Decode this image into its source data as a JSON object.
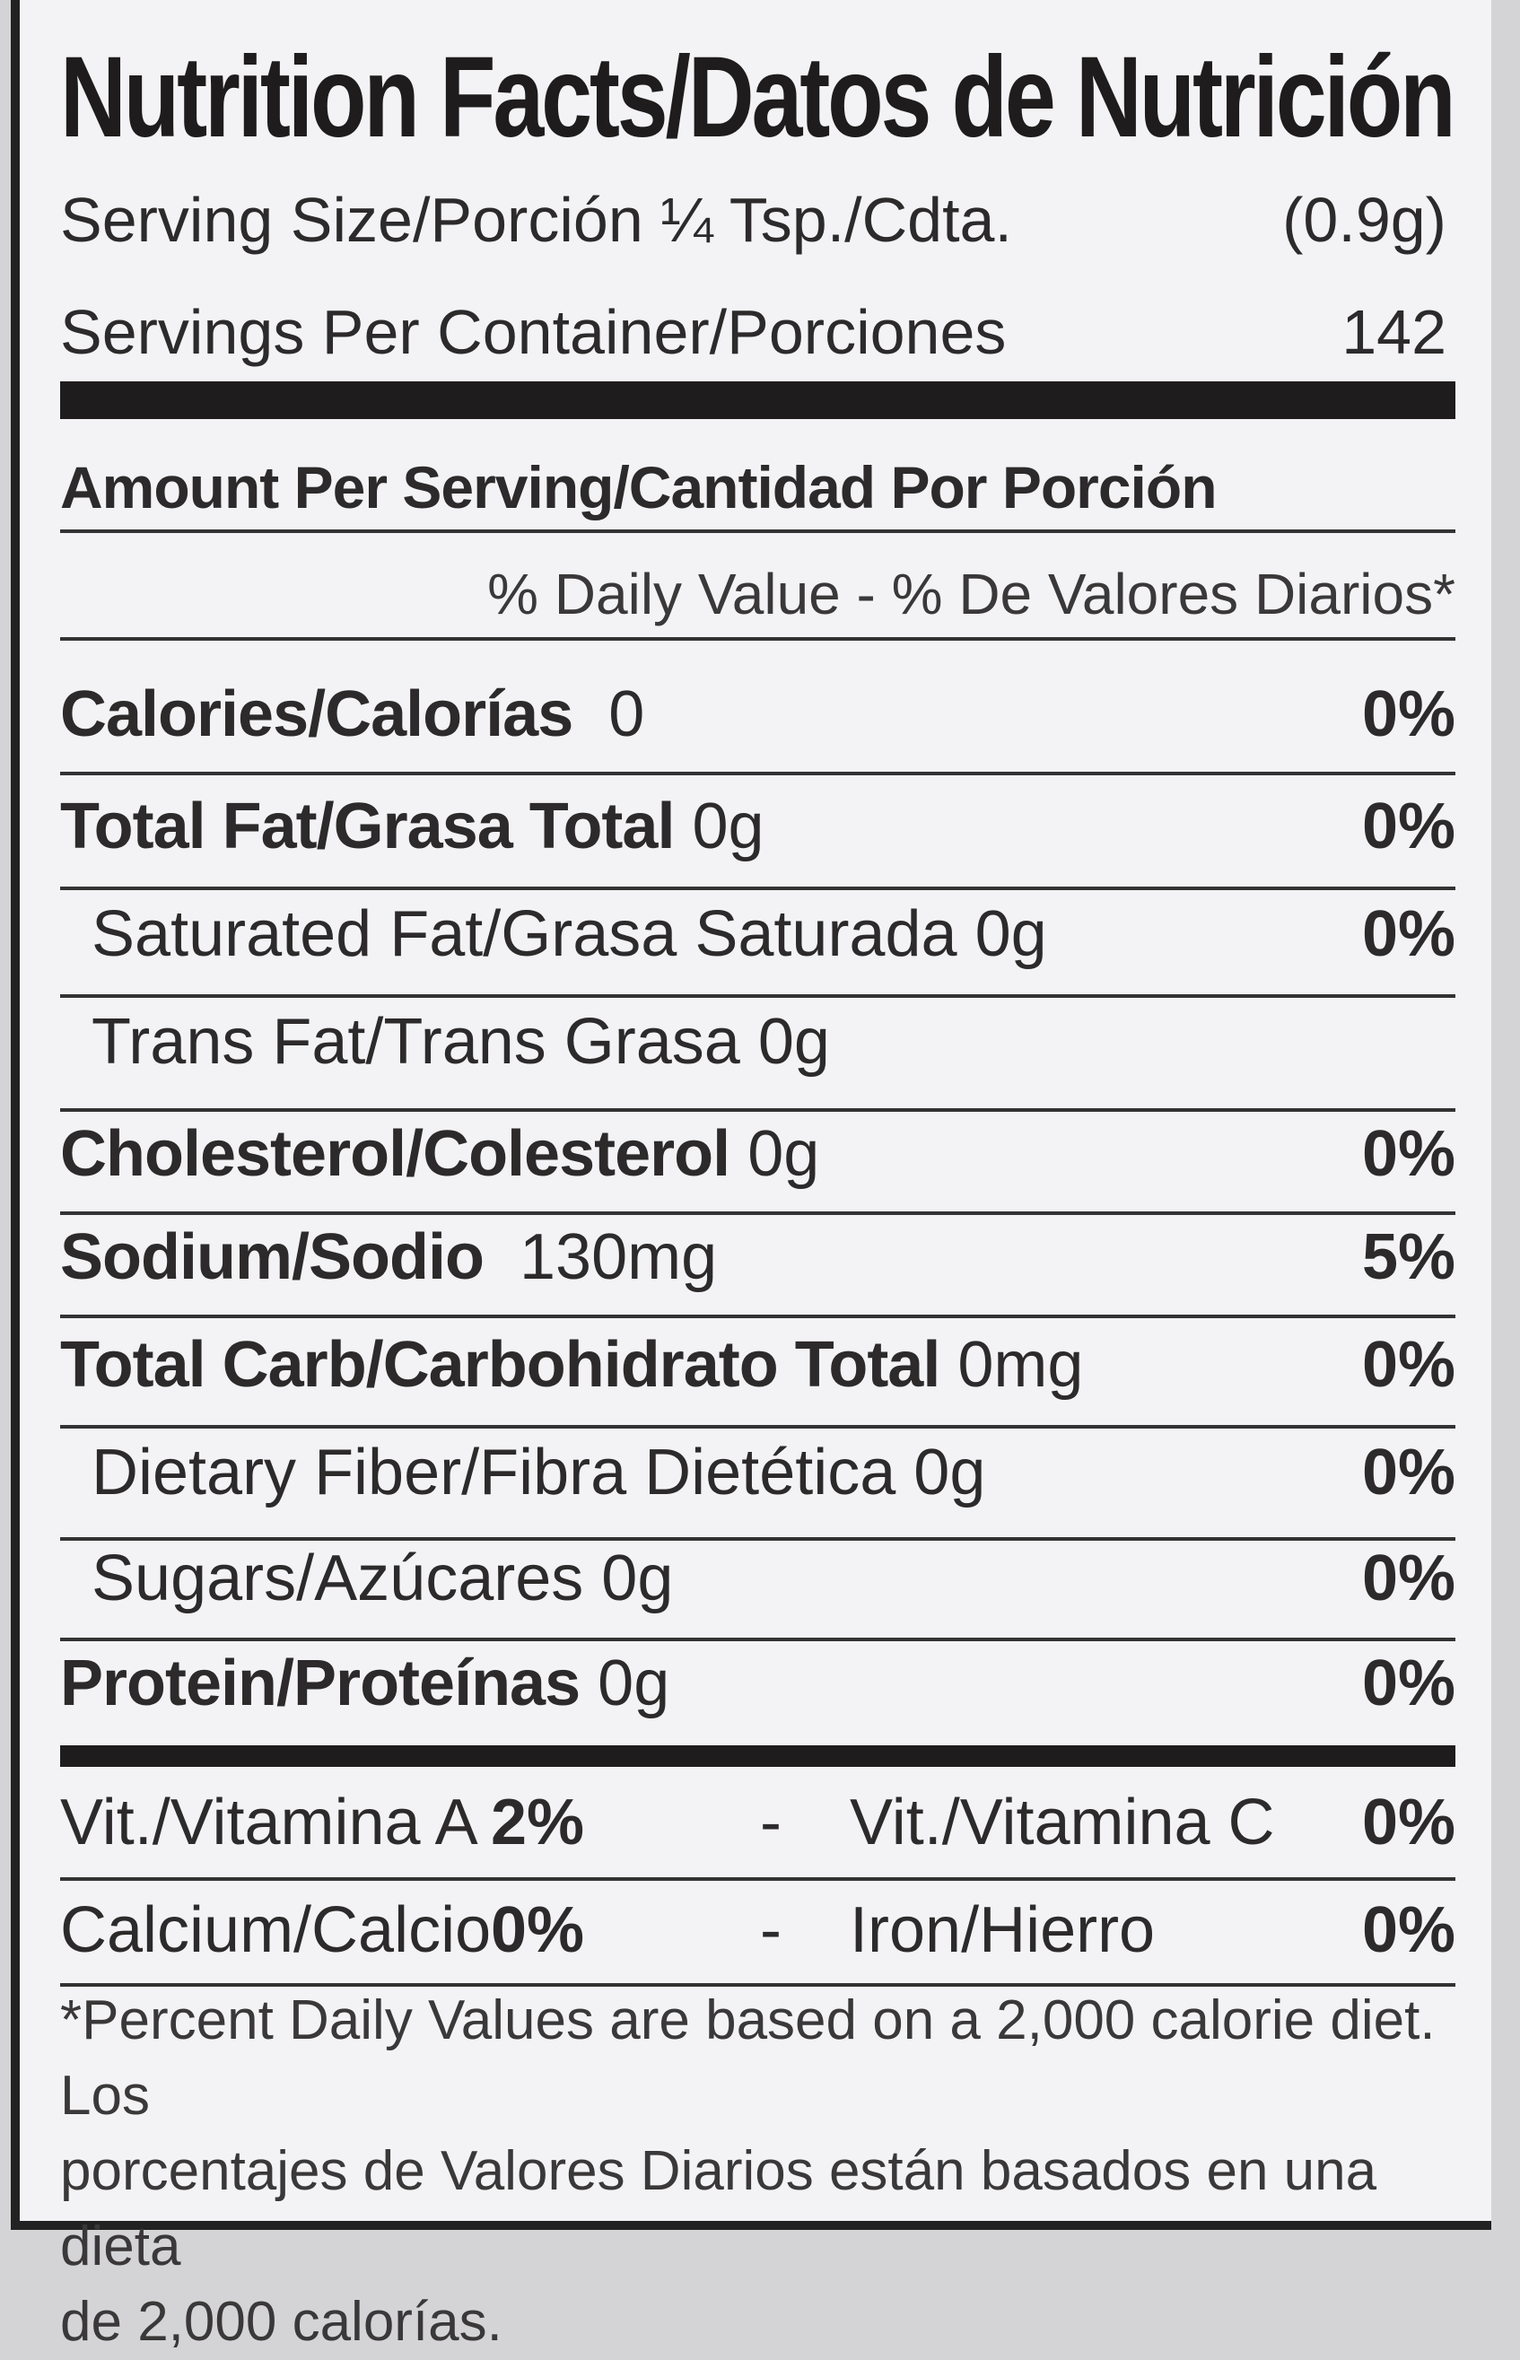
{
  "title": "Nutrition Facts/Datos de Nutrición",
  "serving_size": {
    "label": "Serving Size/Porción ¼ Tsp./Cdta.",
    "value": "(0.9g)"
  },
  "servings_per_container": {
    "label": "Servings Per Container/Porciones",
    "value": "142"
  },
  "amount_per_serving": "Amount Per Serving/Cantidad Por Porción",
  "daily_value_header": "% Daily Value - % De Valores Diarios*",
  "nutrients": [
    {
      "name": "Calories/Calorías",
      "amount": "0",
      "dv": "0%"
    },
    {
      "name": "Total Fat/Grasa Total",
      "amount": "0g",
      "dv": "0%"
    },
    {
      "name": "Saturated Fat/Grasa Saturada",
      "amount": "0g",
      "dv": "0%"
    },
    {
      "name": "Trans Fat/Trans Grasa",
      "amount": "0g",
      "dv": ""
    },
    {
      "name": "Cholesterol/Colesterol",
      "amount": "0g",
      "dv": "0%"
    },
    {
      "name": "Sodium/Sodio",
      "amount": "130mg",
      "dv": "5%"
    },
    {
      "name": "Total Carb/Carbohidrato Total",
      "amount": "0mg",
      "dv": "0%"
    },
    {
      "name": "Dietary Fiber/Fibra Dietética",
      "amount": "0g",
      "dv": "0%"
    },
    {
      "name": "Sugars/Azúcares",
      "amount": "0g",
      "dv": "0%"
    },
    {
      "name": "Protein/Proteínas",
      "amount": "0g",
      "dv": "0%"
    }
  ],
  "vitamins": [
    {
      "left_name": "Vit./Vitamina A",
      "left_value": "2%",
      "sep": "-",
      "right_name": "Vit./Vitamina C",
      "right_value": "0%"
    },
    {
      "left_name": "Calcium/Calcio",
      "left_value": "0%",
      "sep": "-",
      "right_name": "Iron/Hierro",
      "right_value": "0%"
    }
  ],
  "footnote": [
    "*Percent Daily Values are based on a 2,000 calorie diet. Los",
    "porcentajes de Valores Diarios están basados en una dieta",
    "de 2,000 calorías."
  ]
}
